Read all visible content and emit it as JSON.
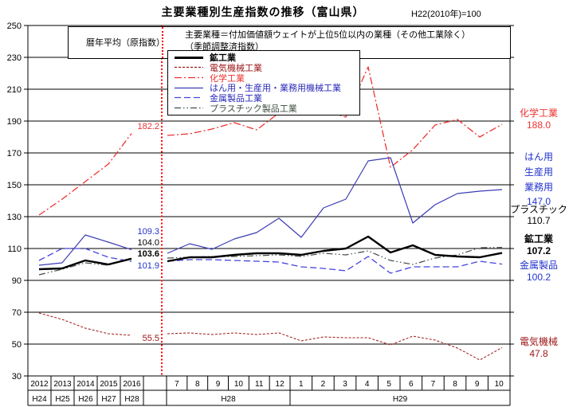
{
  "header": {
    "title": "主要業種別生産指数の推移（富山県）",
    "base": "H22(2010年)=100"
  },
  "notes": {
    "left": "暦年平均（原指数）",
    "line1": "主要業種＝付加価値額ウェイトが上位5位以内の業種（その他工業除く）",
    "line2": "（季節調整済指数）"
  },
  "legend": [
    "鉱工業",
    "電気機械工業",
    "化学工業",
    "はん用・生産用・業務用機械工業",
    "金属製品工業",
    "プラスチック製品工業"
  ],
  "annotations": {
    "chemical": "182.2",
    "machinery": "109.3",
    "plastic": "104.0",
    "mining": "103.6",
    "metal": "101.9",
    "electrical": "55.5"
  },
  "right_labels": {
    "chemical": {
      "name": "化学工業",
      "value": "188.0"
    },
    "machinery": {
      "line1": "はん用",
      "line2": "生産用",
      "line3": "業務用",
      "value": "147.0"
    },
    "plastic": {
      "name": "プラスチック",
      "value": "110.7"
    },
    "mining": {
      "name": "鉱工業",
      "value": "107.2"
    },
    "metal": {
      "name": "金属製品",
      "value": "100.2"
    },
    "electrical": {
      "name": "電気機械",
      "value": "47.8"
    }
  },
  "chart_data": {
    "type": "line",
    "title": "主要業種別生産指数の推移（富山県）",
    "y_axis": {
      "min": 30,
      "max": 250,
      "step": 20
    },
    "x_years": [
      "2012",
      "2013",
      "2014",
      "2015",
      "2016"
    ],
    "x_years_wareki": [
      "H24",
      "H25",
      "H26",
      "H27",
      "H28"
    ],
    "x_months_h28": [
      "7",
      "8",
      "9",
      "10",
      "11",
      "12"
    ],
    "h28_label": "H28",
    "x_months_h29": [
      "1",
      "2",
      "3",
      "4",
      "5",
      "6",
      "7",
      "8",
      "9",
      "10"
    ],
    "h29_label": "H29",
    "divider_color": "#ff0000",
    "series": [
      {
        "name": "鉱工業",
        "color": "#000000",
        "dash": "",
        "width": 2.4,
        "years": [
          97,
          97.5,
          102.5,
          100,
          103.6
        ],
        "months": [
          102,
          104.5,
          104.5,
          106,
          107,
          107,
          106,
          108.5,
          110,
          117.5,
          107.5,
          112,
          106,
          105,
          104.5,
          107.2
        ],
        "avg_2016": 103.6,
        "latest": 107.2
      },
      {
        "name": "電気機械工業",
        "color": "#9b1515",
        "dash": "3 2",
        "width": 1,
        "years": [
          69.5,
          65.5,
          60,
          56.5,
          55.5
        ],
        "months": [
          56.5,
          57,
          56,
          57,
          56,
          57,
          52,
          54.5,
          54,
          54,
          49.5,
          55,
          52.5,
          47.5,
          40,
          47.8
        ],
        "avg_2016": 55.5,
        "latest": 47.8
      },
      {
        "name": "化学工業",
        "color": "#ee3333",
        "dash": "9 3 2 3",
        "width": 1.3,
        "years": [
          131,
          141,
          152,
          163,
          182.2
        ],
        "months": [
          181,
          182,
          185,
          189,
          184.5,
          195,
          202,
          196.5,
          192.5,
          224,
          161,
          172,
          187.5,
          191,
          180,
          188
        ],
        "avg_2016": 182.2,
        "latest": 188.0
      },
      {
        "name": "はん用・生産用・業務用機械工業",
        "color": "#3c3cb4",
        "dash": "",
        "width": 1.2,
        "years": [
          99.5,
          101,
          118.5,
          114,
          109.3
        ],
        "months": [
          107,
          113,
          109.5,
          116,
          120,
          129,
          117,
          135.5,
          141,
          165,
          167,
          126,
          137.5,
          144.5,
          146,
          147
        ],
        "avg_2016": 109.3,
        "latest": 147.0
      },
      {
        "name": "金属製品工業",
        "color": "#4444e0",
        "dash": "8 4",
        "width": 1.3,
        "years": [
          102.5,
          110,
          110,
          104.5,
          101.9
        ],
        "months": [
          102,
          103,
          103,
          102.5,
          102,
          101.5,
          98.5,
          97.5,
          96,
          105,
          94.5,
          98.5,
          98.5,
          98.5,
          102,
          100.2
        ],
        "avg_2016": 101.9,
        "latest": 100.2
      },
      {
        "name": "プラスチック製品工業",
        "color": "#3f4d42",
        "dash": "8 3 1.5 3 1.5 3",
        "width": 1.2,
        "years": [
          93.5,
          97,
          101,
          99.5,
          104
        ],
        "months": [
          104,
          104.5,
          105,
          105,
          105.5,
          106,
          105,
          107,
          106,
          108.5,
          102.5,
          100,
          104,
          106,
          110.5,
          110.7
        ],
        "avg_2016": 104.0,
        "latest": 110.7
      }
    ]
  }
}
